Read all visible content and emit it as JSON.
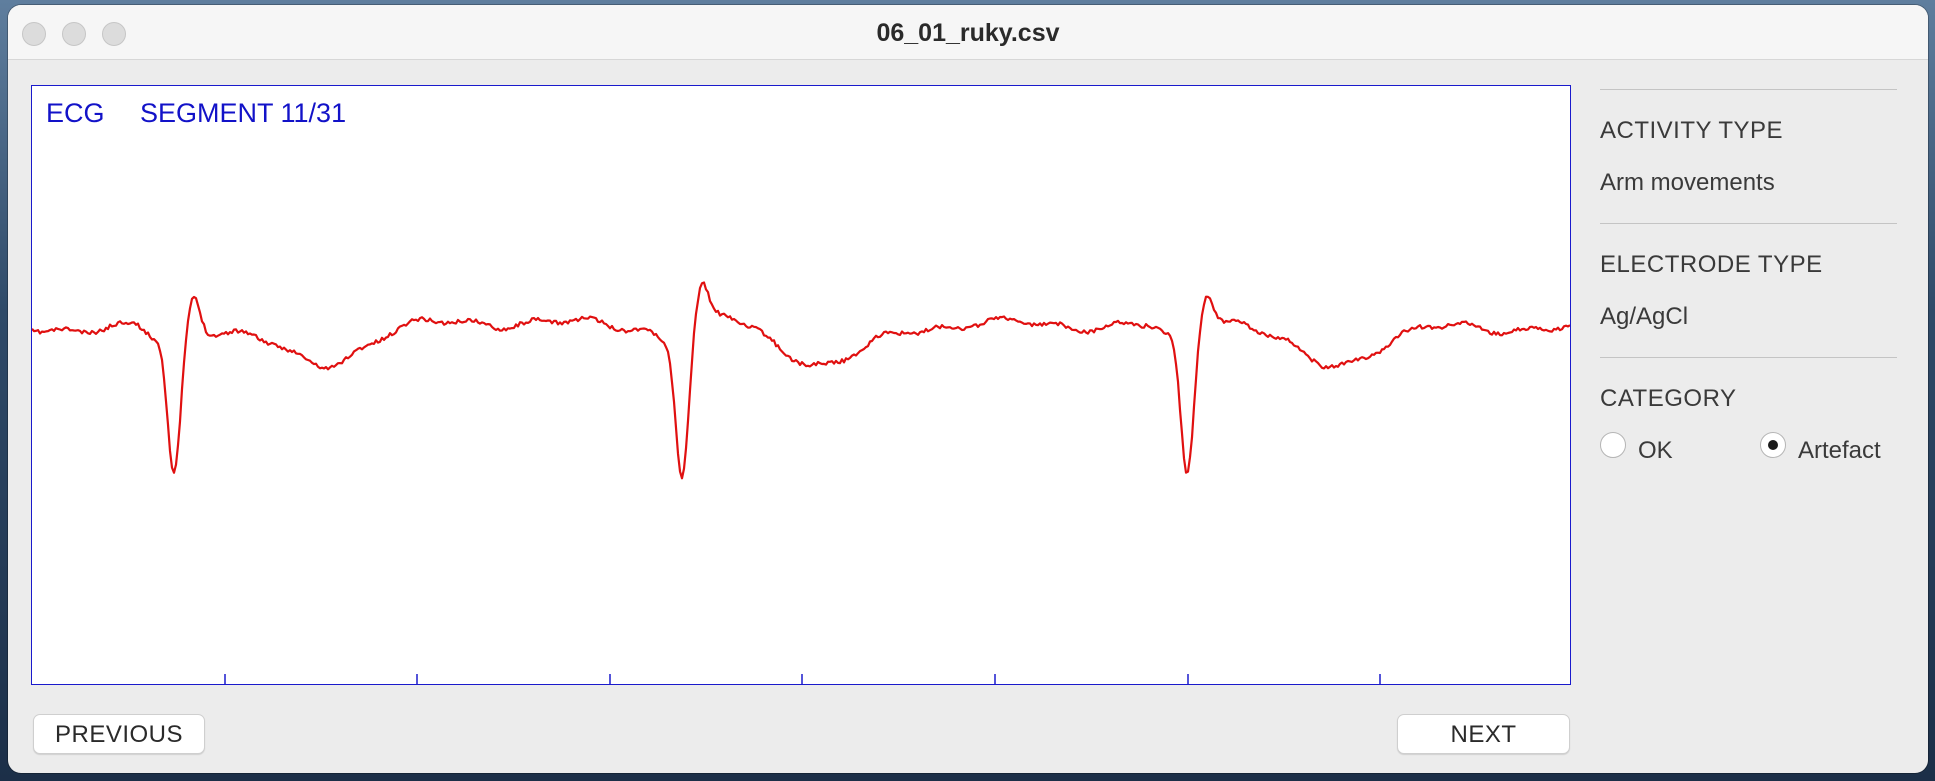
{
  "window": {
    "title": "06_01_ruky.csv"
  },
  "plot": {
    "signal_label": "ECG",
    "segment_label": "SEGMENT 11/31",
    "trace_color": "#e01010",
    "frame_color": "#1a1acc"
  },
  "buttons": {
    "previous": "PREVIOUS",
    "next": "NEXT"
  },
  "side_panel": {
    "activity": {
      "heading": "ACTIVITY TYPE",
      "value": "Arm movements"
    },
    "electrode": {
      "heading": "ELECTRODE TYPE",
      "value": "Ag/AgCl"
    },
    "category": {
      "heading": "CATEGORY",
      "options": [
        {
          "label": "OK",
          "selected": false
        },
        {
          "label": "Artefact",
          "selected": true
        }
      ]
    }
  }
}
